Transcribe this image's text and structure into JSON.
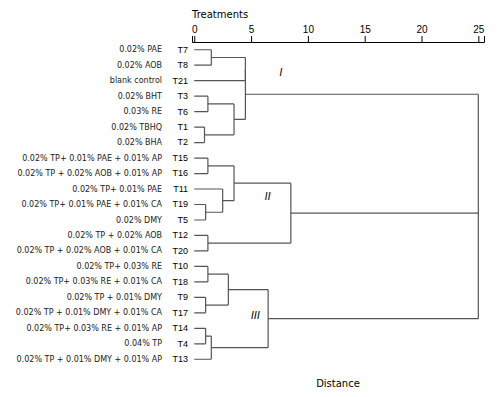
{
  "chart_data": {
    "type": "dendrogram",
    "x_label": "Distance",
    "y_label": "Treatments",
    "categories": [
      "T7",
      "T8",
      "T21",
      "T3",
      "T6",
      "T1",
      "T2",
      "T15",
      "T16",
      "T11",
      "T19",
      "T5",
      "T12",
      "T20",
      "T10",
      "T18",
      "T9",
      "T17",
      "T14",
      "T4",
      "T13"
    ],
    "descriptions": [
      "0.02% PAE",
      "0.02% AOB",
      "blank control",
      "0.02% BHT",
      "0.03% RE",
      "0.02% TBHQ",
      "0.02% BHA",
      "0.02% TP+ 0.01% PAE + 0.01% AP",
      "0.02% TP + 0.02% AOB + 0.01% AP",
      "0.02% TP+ 0.01% PAE",
      "0.02% TP+ 0.01% PAE + 0.01% CA",
      "0.02% DMY",
      "0.02% TP + 0.02% AOB",
      "0.02% TP + 0.02% AOB + 0.01% CA",
      "0.02% TP+ 0.03% RE",
      "0.02% TP+ 0.03% RE + 0.01% CA",
      "0.02% TP + 0.01% DMY",
      "0.02% TP + 0.01% DMY + 0.01% CA",
      "0.02% TP+ 0.03% RE + 0.01% AP",
      "0.04% TP",
      "0.02% TP + 0.01% DMY + 0.01% AP"
    ],
    "tree": {
      "height": 25,
      "children": [
        {
          "height": 4.5,
          "children": [
            {
              "height": 4.5,
              "children": [
                {
                  "height": 1.5,
                  "children": [
                    0,
                    1
                  ]
                },
                2
              ]
            },
            {
              "height": 3.5,
              "children": [
                {
                  "height": 1.2,
                  "children": [
                    3,
                    4
                  ]
                },
                {
                  "height": 0.9,
                  "children": [
                    5,
                    6
                  ]
                }
              ]
            }
          ]
        },
        {
          "height": 8.5,
          "children": [
            {
              "height": 3.5,
              "children": [
                {
                  "height": 1.2,
                  "children": [
                    7,
                    8
                  ]
                },
                {
                  "height": 2.5,
                  "children": [
                    9,
                    {
                      "height": 1.0,
                      "children": [
                        10,
                        11
                      ]
                    }
                  ]
                }
              ]
            },
            {
              "height": 1.2,
              "children": [
                12,
                13
              ]
            }
          ]
        },
        {
          "height": 6.5,
          "children": [
            {
              "height": 3.0,
              "children": [
                {
                  "height": 1.2,
                  "children": [
                    14,
                    15
                  ]
                },
                {
                  "height": 1.0,
                  "children": [
                    16,
                    17
                  ]
                }
              ]
            },
            {
              "height": 1.5,
              "children": [
                {
                  "height": 1.0,
                  "children": [
                    18,
                    19
                  ]
                },
                20
              ]
            }
          ]
        }
      ]
    },
    "annotations": [
      {
        "text": "I",
        "x": 7.5,
        "y": 1.5
      },
      {
        "text": "II",
        "x": 6.2,
        "y": 9.5
      },
      {
        "text": "III",
        "x": 5.0,
        "y": 17.2
      }
    ],
    "color": "#555555",
    "xlim": [
      -0.2,
      25.5
    ],
    "xticks": [
      0,
      5,
      10,
      15,
      20,
      25
    ]
  }
}
